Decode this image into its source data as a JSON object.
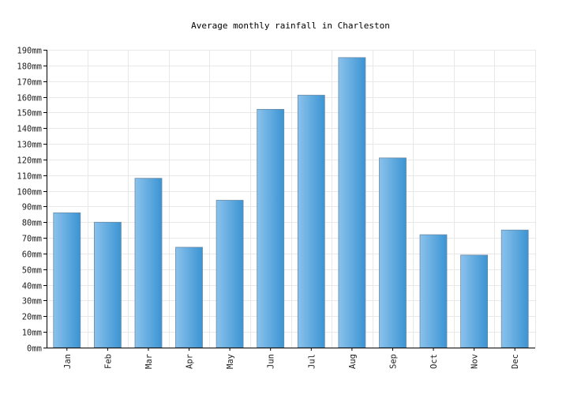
{
  "chart_data": {
    "type": "bar",
    "title": "Average monthly rainfall in Charleston",
    "xlabel": "",
    "ylabel": "",
    "unit": "mm",
    "categories": [
      "Jan",
      "Feb",
      "Mar",
      "Apr",
      "May",
      "Jun",
      "Jul",
      "Aug",
      "Sep",
      "Oct",
      "Nov",
      "Dec"
    ],
    "values": [
      86,
      80,
      108,
      64,
      94,
      152,
      161,
      185,
      121,
      72,
      59,
      75
    ],
    "ylim": [
      0,
      190
    ],
    "ytick_step": 10,
    "yticks": [
      "0mm",
      "10mm",
      "20mm",
      "30mm",
      "40mm",
      "50mm",
      "60mm",
      "70mm",
      "80mm",
      "90mm",
      "100mm",
      "110mm",
      "120mm",
      "130mm",
      "140mm",
      "150mm",
      "160mm",
      "170mm",
      "180mm",
      "190mm"
    ],
    "grid": true,
    "legend": "none",
    "colors": {
      "bar_light": "#85bdea",
      "bar_dark": "#3a93d2",
      "bar_border": "#6a8aa6",
      "grid": "#e8e8e8"
    }
  }
}
